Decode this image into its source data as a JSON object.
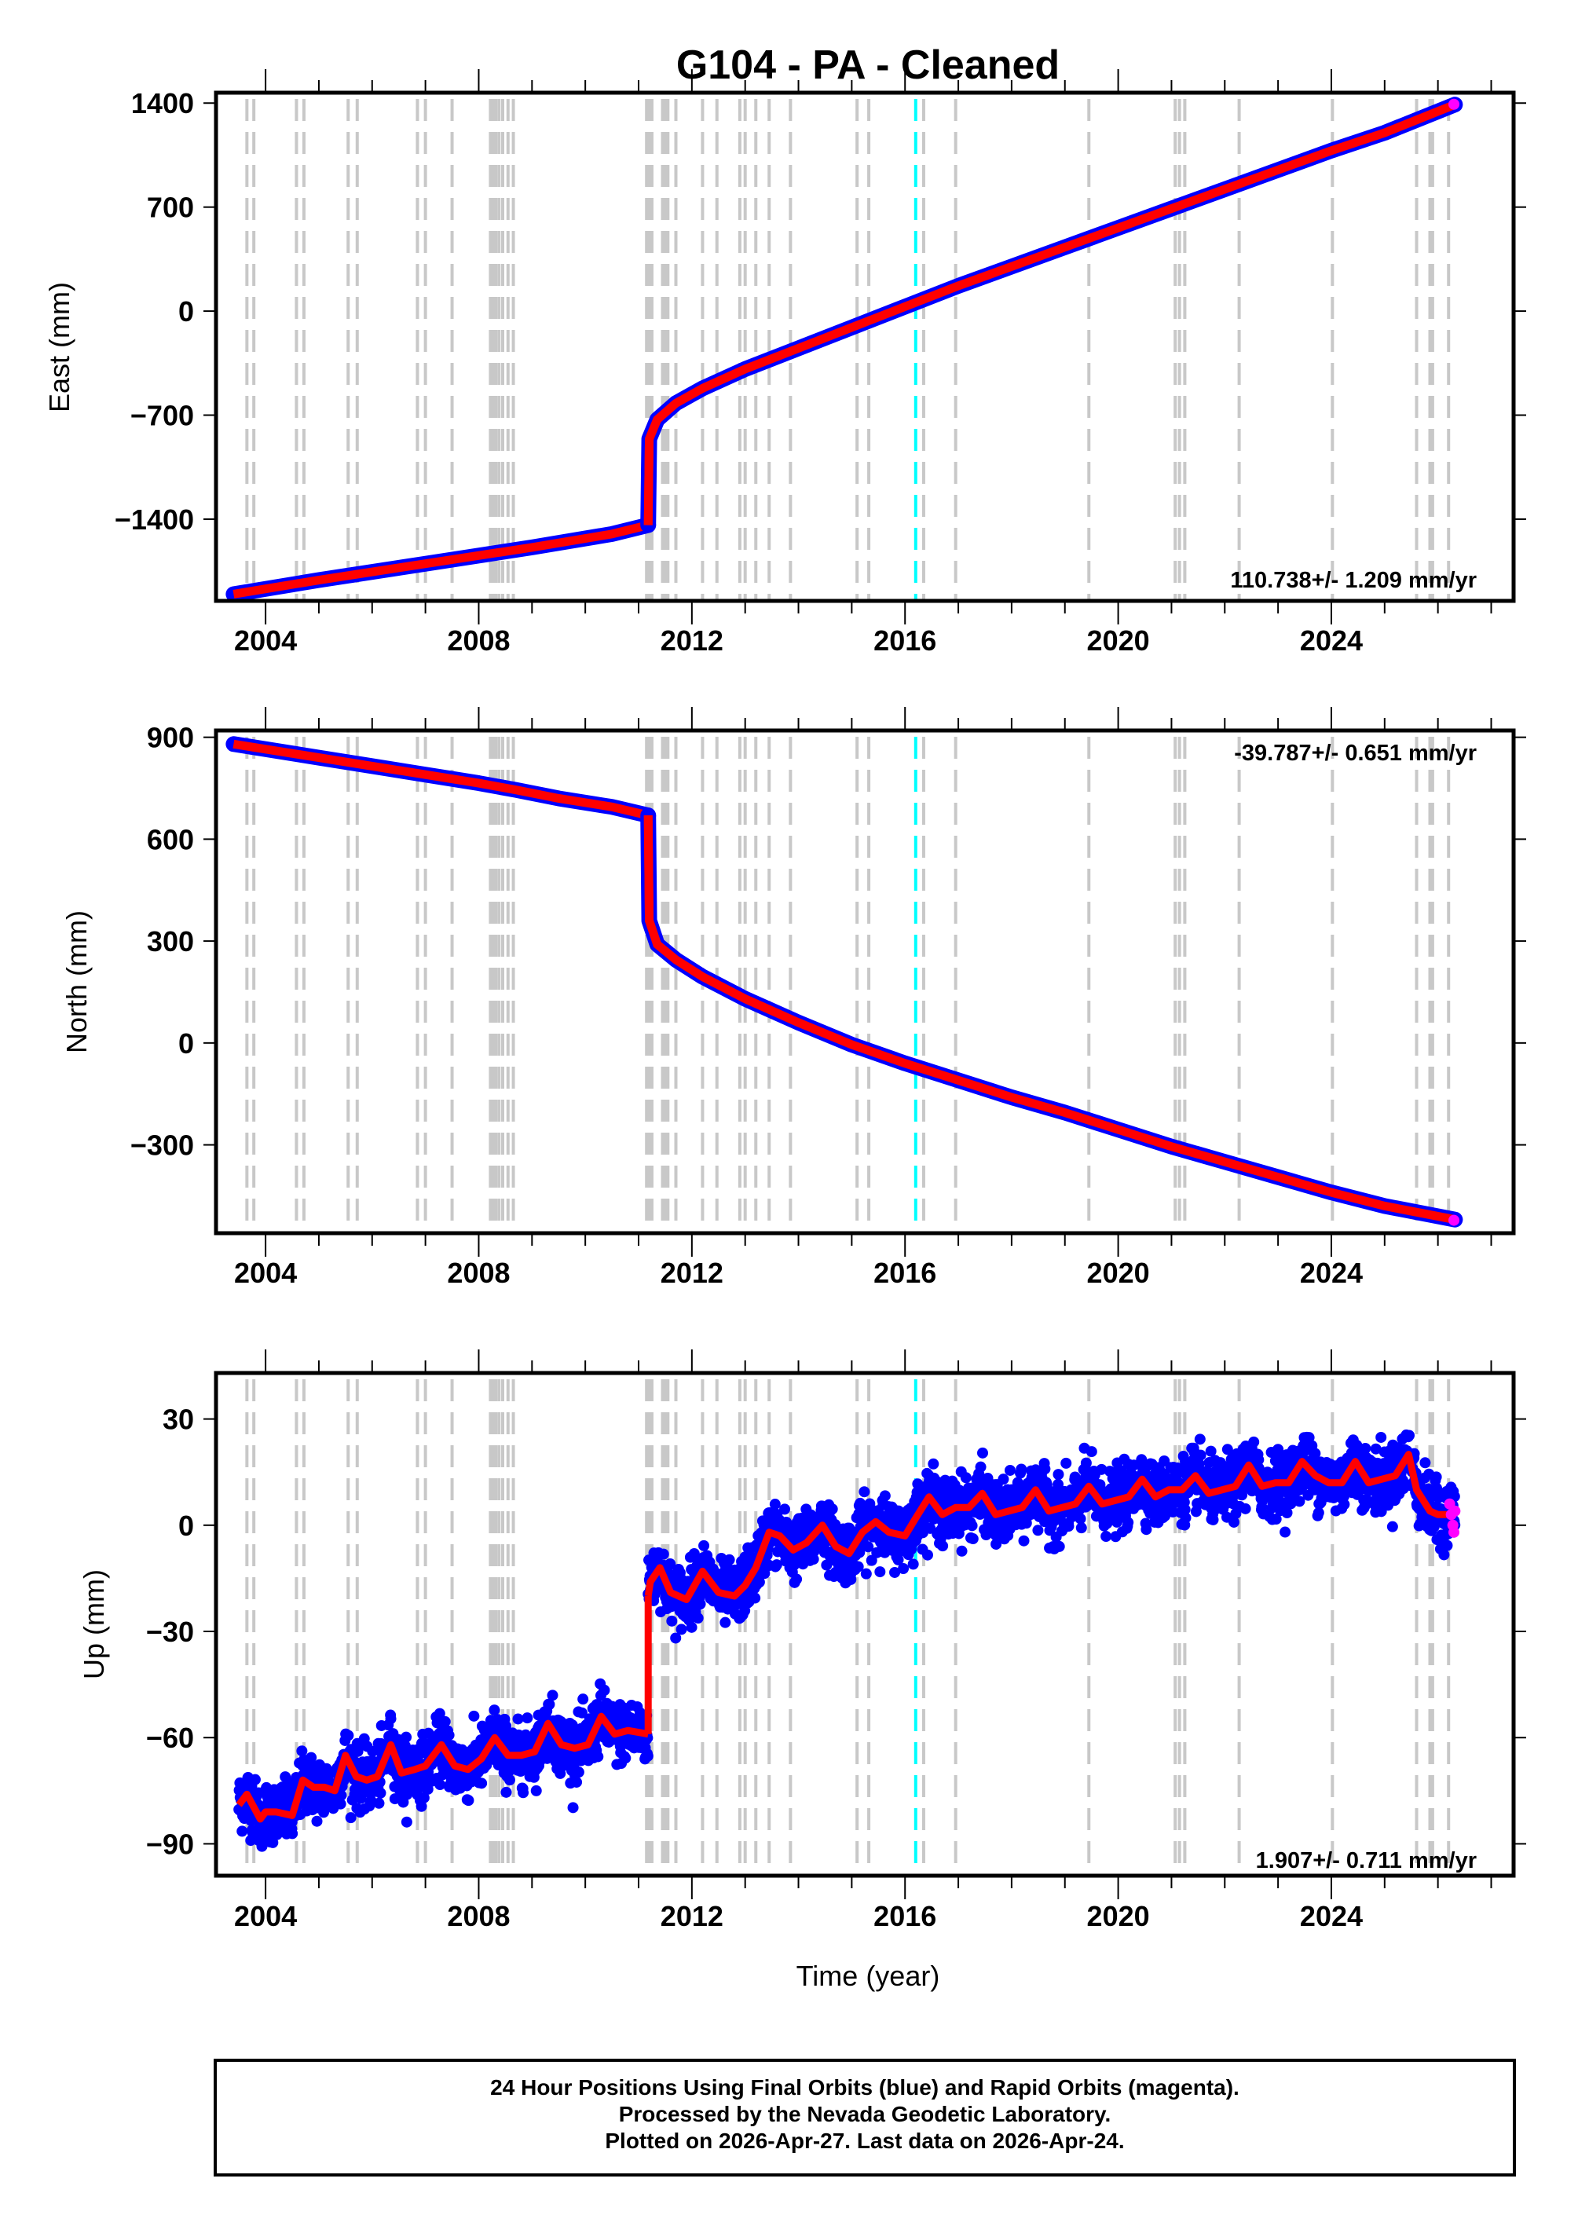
{
  "chart_data": {
    "type": "scatter",
    "title": "G104  - PA - Cleaned",
    "xlabel": "Time (year)",
    "xlim": [
      2003.07,
      2027.42
    ],
    "xticks": [
      2004,
      2008,
      2012,
      2016,
      2020,
      2024
    ],
    "xtick_labels": [
      "2004",
      "2008",
      "2012",
      "2016",
      "2020",
      "2024"
    ],
    "legend": "none",
    "colors": {
      "final": "#0000ff",
      "rapid": "#ff00ff",
      "model": "#ff0000",
      "event_line": "#c8c8c8",
      "cyan_event": "#00ffff"
    },
    "event_years": [
      2003.65,
      2003.78,
      2004.58,
      2004.72,
      2005.55,
      2005.72,
      2006.85,
      2007.0,
      2007.5,
      2008.22,
      2008.27,
      2008.32,
      2008.38,
      2008.45,
      2008.55,
      2008.65,
      2011.15,
      2011.2,
      2011.25,
      2011.45,
      2011.5,
      2011.55,
      2011.7,
      2012.2,
      2012.47,
      2012.9,
      2013.0,
      2013.2,
      2013.45,
      2013.85,
      2015.1,
      2015.32,
      2016.35,
      2016.95,
      2019.45,
      2021.07,
      2021.15,
      2021.25,
      2022.27,
      2024.02,
      2025.6,
      2025.85,
      2025.9,
      2026.2
    ],
    "cyan_event_year": 2016.2,
    "panels": [
      {
        "id": "east",
        "ylabel": "East (mm)",
        "ylim": [
          -1950,
          1470
        ],
        "yticks": [
          1400,
          700,
          0,
          -700,
          -1400
        ],
        "ytick_labels": [
          "1400",
          "700",
          "0",
          "−700",
          "−1400"
        ],
        "rate_label": "110.738+/- 1.209 mm/yr",
        "rate_position": "bottom-right",
        "trend_segments": [
          {
            "x": [
              2003.4,
              2005.0,
              2007.0,
              2009.0,
              2010.5,
              2011.18
            ],
            "y": [
              -1905,
              -1810,
              -1700,
              -1590,
              -1500,
              -1440
            ]
          },
          {
            "x": [
              2011.18,
              2011.2,
              2011.35,
              2011.7,
              2012.2,
              2013.0,
              2014.0,
              2015.0,
              2016.0,
              2017.0,
              2018.0,
              2019.0,
              2020.0,
              2021.0,
              2022.0,
              2023.0,
              2024.0,
              2025.0,
              2026.32
            ],
            "y": [
              -1440,
              -860,
              -730,
              -620,
              -520,
              -390,
              -250,
              -110,
              30,
              170,
              300,
              430,
              560,
              690,
              820,
              950,
              1080,
              1200,
              1390
            ]
          }
        ],
        "rapid_points": {
          "x": [
            2026.3
          ],
          "y": [
            1392
          ]
        }
      },
      {
        "id": "north",
        "ylabel": "North (mm)",
        "ylim": [
          -560,
          920
        ],
        "yticks": [
          900,
          600,
          300,
          0,
          -300
        ],
        "ytick_labels": [
          "900",
          "600",
          "300",
          "0",
          "−300"
        ],
        "rate_label": "-39.787+/- 0.651 mm/yr",
        "rate_position": "top-right",
        "trend_segments": [
          {
            "x": [
              2003.4,
              2004.0,
              2005.0,
              2006.0,
              2007.0,
              2008.0,
              2008.7,
              2009.5,
              2010.5,
              2011.18
            ],
            "y": [
              880,
              865,
              840,
              815,
              790,
              765,
              745,
              720,
              695,
              670
            ]
          },
          {
            "x": [
              2011.18,
              2011.2,
              2011.35,
              2011.7,
              2012.2,
              2013.0,
              2014.0,
              2015.0,
              2016.0,
              2017.0,
              2018.0,
              2019.0,
              2020.0,
              2021.0,
              2022.0,
              2023.0,
              2024.0,
              2025.0,
              2026.32
            ],
            "y": [
              670,
              360,
              290,
              245,
              195,
              130,
              60,
              -5,
              -60,
              -110,
              -160,
              -205,
              -255,
              -305,
              -350,
              -395,
              -440,
              -480,
              -520
            ]
          }
        ],
        "rapid_points": {
          "x": [
            2026.3
          ],
          "y": [
            -522
          ]
        }
      },
      {
        "id": "up",
        "ylabel": "Up (mm)",
        "ylim": [
          -99,
          43
        ],
        "yticks": [
          30,
          0,
          -30,
          -60,
          -90
        ],
        "ytick_labels": [
          "30",
          "0",
          "−30",
          "−60",
          "−90"
        ],
        "rate_label": "1.907+/- 0.711 mm/yr",
        "rate_position": "bottom-right",
        "model_segments": [
          {
            "x": [
              2003.5,
              2003.65,
              2003.9,
              2004.0,
              2004.2,
              2004.5,
              2004.7,
              2004.9,
              2005.1,
              2005.3,
              2005.5,
              2005.7,
              2005.9,
              2006.1,
              2006.35,
              2006.55,
              2006.8,
              2007.0,
              2007.3,
              2007.55,
              2007.8,
              2008.05,
              2008.3,
              2008.55,
              2008.8,
              2009.05,
              2009.3,
              2009.55,
              2009.8,
              2010.05,
              2010.3,
              2010.55,
              2010.8,
              2011.18
            ],
            "y": [
              -79,
              -76,
              -83,
              -81,
              -81,
              -82,
              -72,
              -74,
              -74,
              -75,
              -65,
              -71,
              -72,
              -71,
              -62,
              -70,
              -69,
              -68,
              -62,
              -68,
              -69,
              -66,
              -60,
              -65,
              -65,
              -64,
              -56,
              -62,
              -63,
              -62,
              -54,
              -59,
              -58,
              -59
            ]
          },
          {
            "x": [
              2011.18,
              2011.22,
              2011.4,
              2011.6,
              2011.9,
              2012.2,
              2012.5,
              2012.8,
              2013.0,
              2013.2,
              2013.45,
              2013.65,
              2013.9,
              2014.15,
              2014.45,
              2014.7,
              2014.95,
              2015.2,
              2015.45,
              2015.7,
              2016.0,
              2016.2,
              2016.45,
              2016.7,
              2016.95,
              2017.2,
              2017.45,
              2017.7,
              2017.95,
              2018.2,
              2018.45,
              2018.7,
              2018.95,
              2019.2,
              2019.45,
              2019.7,
              2019.95,
              2020.2,
              2020.45,
              2020.7,
              2020.95,
              2021.2,
              2021.45,
              2021.7,
              2021.95,
              2022.2,
              2022.45,
              2022.7,
              2022.95,
              2023.2,
              2023.45,
              2023.7,
              2023.95,
              2024.2,
              2024.45,
              2024.7,
              2024.95,
              2025.2,
              2025.45,
              2025.6,
              2025.85,
              2026.0,
              2026.32
            ],
            "y": [
              -20,
              -16,
              -12,
              -19,
              -21,
              -13,
              -19,
              -20,
              -17,
              -12,
              -2,
              -3,
              -7,
              -5,
              0,
              -6,
              -8,
              -2,
              1,
              -2,
              -3,
              2,
              8,
              3,
              5,
              5,
              9,
              3,
              4,
              5,
              10,
              4,
              5,
              6,
              11,
              6,
              7,
              8,
              13,
              8,
              10,
              10,
              14,
              9,
              10,
              11,
              17,
              11,
              12,
              12,
              18,
              14,
              12,
              12,
              18,
              12,
              13,
              14,
              20,
              10,
              4,
              3,
              3
            ]
          }
        ],
        "final_points_summary": {
          "n_pre_2011": "dense daily series 2003.4-2011.18, scatter approx ±8 mm around model",
          "n_post_2011": "dense daily series 2011.18-2026.3, scatter approx ±8 mm around model"
        },
        "rapid_points": {
          "x": [
            2026.22,
            2026.25,
            2026.28,
            2026.3,
            2026.32
          ],
          "y": [
            6,
            3,
            0,
            -2,
            4
          ]
        }
      }
    ]
  },
  "footer": {
    "line1": "24 Hour Positions Using Final Orbits (blue) and Rapid Orbits (magenta).",
    "line2": "Processed by the Nevada Geodetic Laboratory.",
    "line3": "Plotted on 2026-Apr-27. Last data on 2026-Apr-24."
  }
}
